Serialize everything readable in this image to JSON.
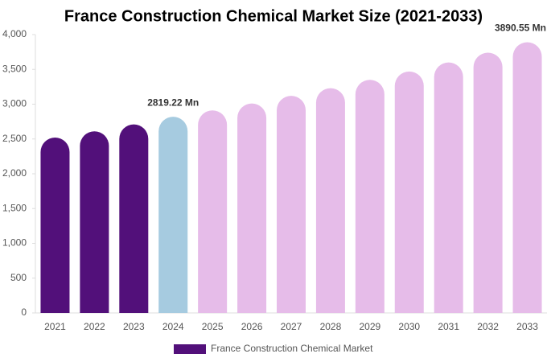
{
  "chart_data": {
    "type": "bar",
    "title": "France Construction Chemical Market Size (2021-2033)",
    "categories": [
      "2021",
      "2022",
      "2023",
      "2024",
      "2025",
      "2026",
      "2027",
      "2028",
      "2029",
      "2030",
      "2031",
      "2032",
      "2033"
    ],
    "series": [
      {
        "name": "France Construction Chemical Market",
        "color": "#52107a",
        "values": [
          2520,
          2610,
          2710,
          2819.22,
          2910,
          3010,
          3120,
          3230,
          3350,
          3470,
          3600,
          3740,
          3890.55
        ],
        "value_labels": [
          null,
          null,
          null,
          "2819.22 Mn",
          null,
          null,
          null,
          null,
          null,
          null,
          null,
          null,
          "3890.55 Mn"
        ],
        "colors": [
          "#52107a",
          "#52107a",
          "#52107a",
          "#a6cbe0",
          "#e6bce9",
          "#e6bce9",
          "#e6bce9",
          "#e6bce9",
          "#e6bce9",
          "#e6bce9",
          "#e6bce9",
          "#e6bce9",
          "#e6bce9"
        ]
      }
    ],
    "ylim": [
      0,
      4000
    ],
    "yticks": [
      0,
      500,
      {
        "value": 1000,
        "label": "1,000"
      },
      {
        "value": 1500,
        "label": "1,500"
      },
      {
        "value": 2000,
        "label": "2,000"
      },
      {
        "value": 2500,
        "label": "2,500"
      },
      {
        "value": 3000,
        "label": "3,000"
      },
      {
        "value": 3500,
        "label": "3,500"
      },
      {
        "value": 4000,
        "label": "4,000"
      }
    ],
    "grid": false
  }
}
